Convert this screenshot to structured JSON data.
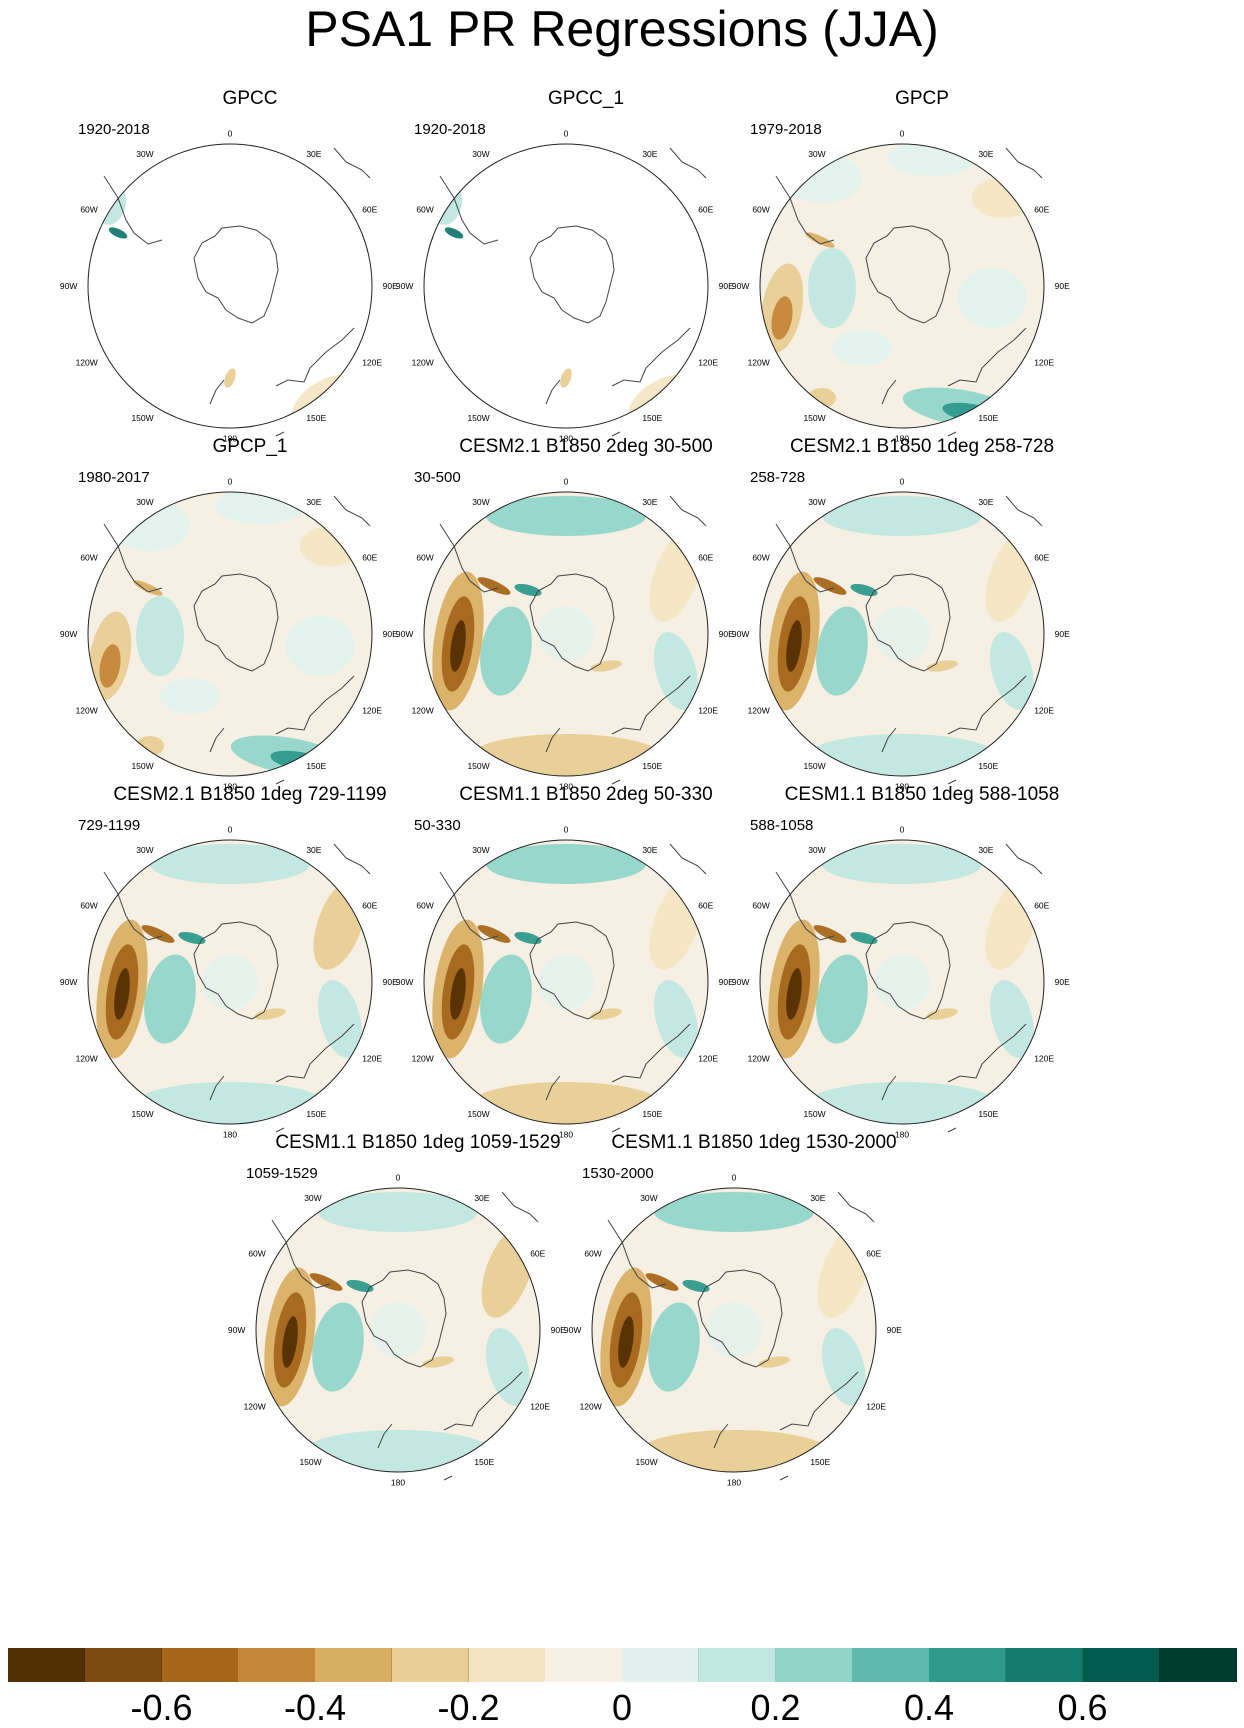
{
  "title": "PSA1 PR Regressions (JJA)",
  "lon_labels": {
    "deg0": "0",
    "e30": "30E",
    "e60": "60E",
    "e90": "90E",
    "e120": "120E",
    "e150": "150E",
    "deg180": "180",
    "w150": "150W",
    "w120": "120W",
    "w90": "90W",
    "w60": "60W",
    "w30": "30W"
  },
  "panels": [
    {
      "title": "GPCC",
      "period": "1920-2018",
      "dataset": "obs-land"
    },
    {
      "title": "GPCC_1",
      "period": "1920-2018",
      "dataset": "obs-land"
    },
    {
      "title": "GPCP",
      "period": "1979-2018",
      "dataset": "obs-global"
    },
    {
      "title": "GPCP_1",
      "period": "1980-2017",
      "dataset": "obs-global"
    },
    {
      "title": "CESM2.1 B1850 2deg 30-500",
      "period": "30-500",
      "dataset": "model"
    },
    {
      "title": "CESM2.1 B1850 1deg 258-728",
      "period": "258-728",
      "dataset": "model"
    },
    {
      "title": "CESM2.1 B1850 1deg 729-1199",
      "period": "729-1199",
      "dataset": "model"
    },
    {
      "title": "CESM1.1 B1850 2deg 50-330",
      "period": "50-330",
      "dataset": "model"
    },
    {
      "title": "CESM1.1 B1850 1deg 588-1058",
      "period": "588-1058",
      "dataset": "model"
    },
    {
      "title": "CESM1.1 B1850 1deg 1059-1529",
      "period": "1059-1529",
      "dataset": "model"
    },
    {
      "title": "CESM1.1 B1850 1deg 1530-2000",
      "period": "1530-2000",
      "dataset": "model"
    }
  ],
  "colorbar": {
    "colors": [
      "#543005",
      "#7d4a0f",
      "#a5661a",
      "#c48739",
      "#d9af63",
      "#e8cd95",
      "#f4e5c2",
      "#f5f0e3",
      "#e3f1ee",
      "#c0e7e0",
      "#92d5c9",
      "#5fb9ac",
      "#2f9a8c",
      "#147a6d",
      "#035b4e",
      "#013c31"
    ],
    "labels": [
      "-0.6",
      "-0.4",
      "-0.2",
      "0",
      "0.2",
      "0.4",
      "0.6"
    ],
    "label_values": [
      -0.6,
      -0.4,
      -0.2,
      0,
      0.2,
      0.4,
      0.6
    ],
    "range": [
      -0.8,
      0.8
    ]
  }
}
